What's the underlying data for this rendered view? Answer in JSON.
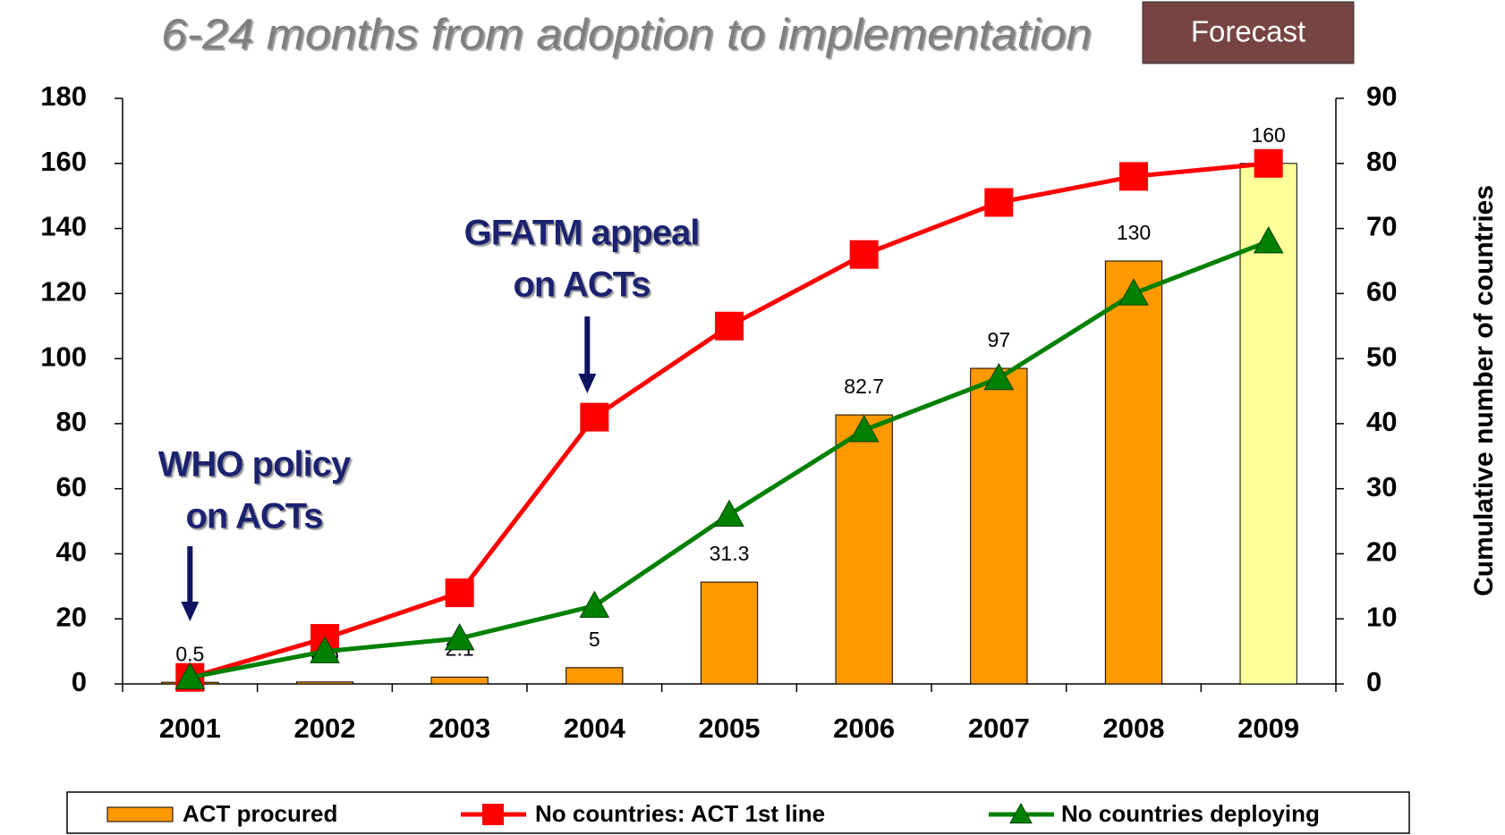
{
  "chart_data": {
    "type": "bar-line",
    "title": "6-24 months from adoption to implementation",
    "forecast_label": "Forecast",
    "annotations": [
      {
        "lines": [
          "GFATM appeal",
          "on ACTs"
        ],
        "category": "2004"
      },
      {
        "lines": [
          "WHO policy",
          "on ACTs"
        ],
        "category": "2001"
      }
    ],
    "y2_label": "Cumulative number of countries",
    "categories": [
      "2001",
      "2002",
      "2003",
      "2004",
      "2005",
      "2006",
      "2007",
      "2008",
      "2009"
    ],
    "series": [
      {
        "name": "ACT procured",
        "type": "bar",
        "values": [
          0.5,
          0.6,
          2.1,
          5,
          31.3,
          82.7,
          97,
          130,
          160
        ],
        "colors": [
          "#ff9900",
          "#ff9900",
          "#ff9900",
          "#ff9900",
          "#ff9900",
          "#ff9900",
          "#ff9900",
          "#ff9900",
          "#ffff99"
        ]
      },
      {
        "name": "No countries: ACT 1st line",
        "type": "line",
        "axis": "y2",
        "color": "#ff0000",
        "marker": "square",
        "values": [
          1,
          7,
          14,
          41,
          55,
          66,
          74,
          78,
          80
        ]
      },
      {
        "name": "No countries deploying",
        "type": "line",
        "axis": "y2",
        "color": "#008000",
        "marker": "triangle",
        "values": [
          1,
          5,
          7,
          12,
          26,
          39,
          47,
          60,
          68
        ]
      }
    ],
    "ylim": [
      0,
      180
    ],
    "yticks": [
      0,
      20,
      40,
      60,
      80,
      100,
      120,
      140,
      160,
      180
    ],
    "y2lim": [
      0,
      90
    ],
    "y2ticks": [
      0,
      10,
      20,
      30,
      40,
      50,
      60,
      70,
      80,
      90
    ]
  }
}
